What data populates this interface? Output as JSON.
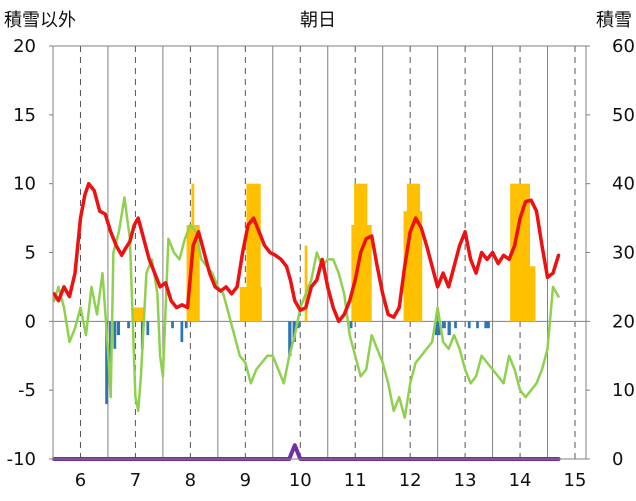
{
  "chart_data": {
    "type": "line",
    "title": "朝日",
    "y_left_label": "積雪以外",
    "y_right_label": "積雪",
    "y_left_range": [
      -10,
      20
    ],
    "y_right_range": [
      0,
      60
    ],
    "y_left_ticks": [
      "20",
      "15",
      "10",
      "5",
      "0",
      "-5",
      "-10"
    ],
    "y_right_ticks": [
      "60",
      "50",
      "40",
      "30",
      "20",
      "10",
      "0"
    ],
    "x_range": [
      5.5,
      15.2
    ],
    "x_ticks": [
      "6",
      "7",
      "8",
      "9",
      "10",
      "11",
      "12",
      "13",
      "14",
      "15"
    ],
    "grid": "vertical dashed at each day",
    "colors": {
      "red": "#ee1111",
      "green": "#8fd14f",
      "sun": "#ffc000",
      "precip": "#2e75b6",
      "snow": "#7030a0",
      "axis": "#808080",
      "grid": "#555555"
    },
    "red_series": {
      "x": [
        5.52,
        5.6,
        5.7,
        5.8,
        5.9,
        6.0,
        6.08,
        6.15,
        6.25,
        6.35,
        6.45,
        6.55,
        6.65,
        6.75,
        6.82,
        6.9,
        6.98,
        7.05,
        7.15,
        7.25,
        7.35,
        7.45,
        7.55,
        7.65,
        7.75,
        7.85,
        7.95,
        8.05,
        8.15,
        8.25,
        8.35,
        8.45,
        8.55,
        8.65,
        8.75,
        8.85,
        8.95,
        9.05,
        9.15,
        9.25,
        9.35,
        9.45,
        9.55,
        9.65,
        9.75,
        9.82,
        9.9,
        10.0,
        10.1,
        10.2,
        10.3,
        10.4,
        10.5,
        10.6,
        10.7,
        10.8,
        10.9,
        11.0,
        11.1,
        11.2,
        11.3,
        11.4,
        11.5,
        11.6,
        11.7,
        11.8,
        11.9,
        12.0,
        12.1,
        12.2,
        12.3,
        12.4,
        12.5,
        12.6,
        12.7,
        12.8,
        12.9,
        13.0,
        13.1,
        13.2,
        13.3,
        13.4,
        13.5,
        13.6,
        13.7,
        13.8,
        13.9,
        14.0,
        14.1,
        14.2,
        14.3,
        14.4,
        14.5,
        14.6,
        14.7
      ],
      "y": [
        2.0,
        1.5,
        2.5,
        1.8,
        3.5,
        7.5,
        9.2,
        10.0,
        9.5,
        8.0,
        7.8,
        6.5,
        5.5,
        4.8,
        5.3,
        5.8,
        7.0,
        7.5,
        6.0,
        4.5,
        3.5,
        2.5,
        2.8,
        1.5,
        1.0,
        1.2,
        1.0,
        5.5,
        6.5,
        5.0,
        3.5,
        2.5,
        2.2,
        2.5,
        2.0,
        2.5,
        5.0,
        7.0,
        7.5,
        6.5,
        5.5,
        5.0,
        4.8,
        4.5,
        4.0,
        3.0,
        1.5,
        0.8,
        1.0,
        2.5,
        3.0,
        4.5,
        2.5,
        1.0,
        0.0,
        0.5,
        1.5,
        3.0,
        5.0,
        6.0,
        6.2,
        4.0,
        2.0,
        0.5,
        0.3,
        1.0,
        4.0,
        6.5,
        7.5,
        6.8,
        5.5,
        4.0,
        2.5,
        3.5,
        2.5,
        4.0,
        5.5,
        6.5,
        4.5,
        3.5,
        5.0,
        4.5,
        5.0,
        4.2,
        4.8,
        4.5,
        5.5,
        7.5,
        8.7,
        8.8,
        8.0,
        5.5,
        3.2,
        3.5,
        4.8
      ]
    },
    "green_series": {
      "x": [
        5.52,
        5.6,
        5.7,
        5.8,
        5.9,
        6.0,
        6.1,
        6.2,
        6.3,
        6.4,
        6.5,
        6.55,
        6.6,
        6.7,
        6.8,
        6.9,
        7.0,
        7.05,
        7.1,
        7.2,
        7.3,
        7.4,
        7.45,
        7.5,
        7.6,
        7.7,
        7.8,
        7.9,
        8.0,
        8.1,
        8.2,
        8.3,
        8.4,
        8.5,
        8.6,
        8.7,
        8.8,
        8.9,
        9.0,
        9.1,
        9.2,
        9.3,
        9.4,
        9.5,
        9.6,
        9.7,
        9.8,
        9.9,
        10.0,
        10.1,
        10.2,
        10.3,
        10.4,
        10.5,
        10.6,
        10.7,
        10.8,
        10.9,
        11.0,
        11.1,
        11.2,
        11.3,
        11.4,
        11.5,
        11.6,
        11.7,
        11.8,
        11.9,
        12.0,
        12.1,
        12.2,
        12.3,
        12.4,
        12.5,
        12.6,
        12.7,
        12.8,
        12.9,
        13.0,
        13.1,
        13.2,
        13.3,
        13.4,
        13.5,
        13.6,
        13.7,
        13.8,
        13.9,
        14.0,
        14.1,
        14.2,
        14.3,
        14.4,
        14.5,
        14.6,
        14.7
      ],
      "y": [
        1.5,
        2.5,
        1.0,
        -1.5,
        -0.5,
        1.0,
        -1.0,
        2.5,
        0.5,
        3.5,
        -2.0,
        -5.5,
        5.0,
        6.5,
        9.0,
        6.0,
        -5.5,
        -6.5,
        -4.0,
        3.5,
        4.5,
        2.0,
        -2.5,
        -4.0,
        6.0,
        5.0,
        4.5,
        6.0,
        7.0,
        6.5,
        4.5,
        4.0,
        3.5,
        2.5,
        2.0,
        0.5,
        -1.0,
        -2.5,
        -3.0,
        -4.5,
        -3.5,
        -3.0,
        -2.5,
        -2.5,
        -3.5,
        -4.5,
        -2.5,
        -1.0,
        1.0,
        2.0,
        3.0,
        5.0,
        4.0,
        4.5,
        4.5,
        3.5,
        2.0,
        -1.0,
        -2.5,
        -4.0,
        -3.5,
        -1.0,
        -2.0,
        -3.0,
        -4.5,
        -6.5,
        -5.5,
        -7.0,
        -4.5,
        -3.0,
        -2.5,
        -2.0,
        -1.5,
        1.0,
        -1.5,
        -2.0,
        -1.0,
        -2.0,
        -3.5,
        -4.5,
        -4.0,
        -2.5,
        -3.0,
        -3.5,
        -4.0,
        -4.5,
        -2.5,
        -3.5,
        -5.0,
        -5.5,
        -5.0,
        -4.5,
        -3.5,
        -2.0,
        2.5,
        1.8
      ]
    },
    "sunshine_bars": [
      {
        "x0": 6.95,
        "x1": 7.15,
        "y": 1.0
      },
      {
        "x0": 7.93,
        "x1": 8.17,
        "y": 7.0
      },
      {
        "x0": 8.02,
        "x1": 8.07,
        "y": 10.0
      },
      {
        "x0": 8.9,
        "x1": 9.3,
        "y": 2.5
      },
      {
        "x0": 9.02,
        "x1": 9.28,
        "y": 10.0
      },
      {
        "x0": 10.08,
        "x1": 10.13,
        "y": 5.5
      },
      {
        "x0": 10.93,
        "x1": 11.3,
        "y": 7.0
      },
      {
        "x0": 10.98,
        "x1": 11.22,
        "y": 10.0
      },
      {
        "x0": 11.88,
        "x1": 12.22,
        "y": 8.0
      },
      {
        "x0": 11.94,
        "x1": 12.18,
        "y": 10.0
      },
      {
        "x0": 13.82,
        "x1": 14.18,
        "y": 10.0
      },
      {
        "x0": 14.18,
        "x1": 14.28,
        "y": 4.0
      }
    ],
    "precip_bars": [
      {
        "x0": 6.45,
        "x1": 6.5,
        "y": -6.0
      },
      {
        "x0": 6.52,
        "x1": 6.58,
        "y": -3.0
      },
      {
        "x0": 6.6,
        "x1": 6.65,
        "y": -2.0
      },
      {
        "x0": 6.66,
        "x1": 6.72,
        "y": -1.0
      },
      {
        "x0": 6.85,
        "x1": 6.9,
        "y": -0.5
      },
      {
        "x0": 7.1,
        "x1": 7.15,
        "y": -2.0
      },
      {
        "x0": 7.2,
        "x1": 7.25,
        "y": -1.0
      },
      {
        "x0": 7.65,
        "x1": 7.7,
        "y": -0.5
      },
      {
        "x0": 7.82,
        "x1": 7.87,
        "y": -1.5
      },
      {
        "x0": 7.9,
        "x1": 7.95,
        "y": -0.5
      },
      {
        "x0": 9.78,
        "x1": 9.84,
        "y": -2.5
      },
      {
        "x0": 9.86,
        "x1": 9.92,
        "y": -1.5
      },
      {
        "x0": 9.94,
        "x1": 9.99,
        "y": -0.5
      },
      {
        "x0": 10.9,
        "x1": 10.95,
        "y": -0.5
      },
      {
        "x0": 12.45,
        "x1": 12.55,
        "y": -1.0
      },
      {
        "x0": 12.58,
        "x1": 12.65,
        "y": -0.5
      },
      {
        "x0": 12.68,
        "x1": 12.74,
        "y": -1.0
      },
      {
        "x0": 12.8,
        "x1": 12.85,
        "y": -0.5
      },
      {
        "x0": 13.05,
        "x1": 13.1,
        "y": -0.5
      },
      {
        "x0": 13.2,
        "x1": 13.25,
        "y": -0.5
      },
      {
        "x0": 13.35,
        "x1": 13.45,
        "y": -0.5
      }
    ],
    "snow_series": {
      "x": [
        5.52,
        9.8,
        9.85,
        9.9,
        9.95,
        10.0,
        14.7
      ],
      "y": [
        0,
        0,
        1.0,
        2.0,
        1.0,
        0,
        0
      ]
    }
  }
}
